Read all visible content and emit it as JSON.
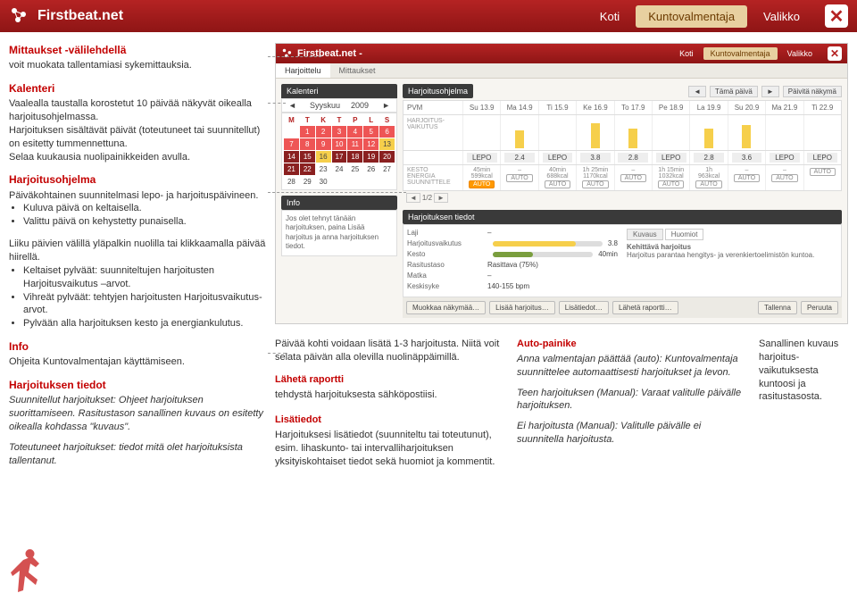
{
  "topbar": {
    "brand": "Firstbeat.net",
    "nav": [
      "Koti",
      "Kuntovalmentaja",
      "Valikko"
    ]
  },
  "left": {
    "a1": {
      "t": "Mittaukset -välilehdellä",
      "b": "voit muokata tallentamiasi sykemittauksia."
    },
    "a2": {
      "t": "Kalenteri",
      "b1": "Vaalealla taustalla korostetut 10 päivää näkyvät oikealla harjoitusohjelmassa.",
      "b2": "Harjoituksen sisältävät päivät (toteutuneet tai suunnitellut) on esitetty tummennettuna.",
      "b3": "Selaa kuukausia nuolipainikkeiden avulla."
    },
    "a3": {
      "t": "Harjoitusohjelma",
      "b": "Päiväkohtainen suunnitelmasi lepo- ja harjoituspäivineen.",
      "li1": "Kuluva päivä on keltaisella.",
      "li2": "Valittu päivä on kehystetty punaisella."
    },
    "a4": {
      "b": "Liiku päivien välillä yläpalkin nuolilla tai klikkaamalla päivää hiirellä.",
      "li1": "Keltaiset pylväät: suunniteltujen harjoitusten Harjoitusvaikutus –arvot.",
      "li2": "Vihreät pylväät: tehtyjen harjoitusten Harjoitusvaikutus-arvot.",
      "li3": "Pylvään alla harjoituksen kesto ja energiankulutus."
    },
    "a5": {
      "t": "Info",
      "b": "Ohjeita Kuntovalmentajan käyttämiseen."
    },
    "a6": {
      "t": "Harjoituksen tiedot",
      "b1": "Suunnitellut harjoitukset: Ohjeet harjoituksen suorittamiseen. Rasitustason sanallinen kuvaus on esitetty oikealla kohdassa \"kuvaus\".",
      "b2": "Toteutuneet harjoitukset: tiedot mitä olet harjoituksista tallentanut."
    }
  },
  "inner": {
    "brand": "Firstbeat.net -",
    "nav": [
      "Koti",
      "Kuntovalmentaja",
      "Valikko"
    ],
    "tabs": [
      "Harjoittelu",
      "Mittaukset"
    ],
    "calendar": {
      "title": "Kalenteri",
      "month": "Syyskuu",
      "year": "2009",
      "dow": [
        "M",
        "T",
        "K",
        "T",
        "P",
        "L",
        "S"
      ],
      "cells": [
        {
          "n": "",
          "c": ""
        },
        {
          "n": "1",
          "c": "red"
        },
        {
          "n": "2",
          "c": "red"
        },
        {
          "n": "3",
          "c": "red"
        },
        {
          "n": "4",
          "c": "red"
        },
        {
          "n": "5",
          "c": "red"
        },
        {
          "n": "6",
          "c": "red"
        },
        {
          "n": "7",
          "c": "red"
        },
        {
          "n": "8",
          "c": "red"
        },
        {
          "n": "9",
          "c": "red"
        },
        {
          "n": "10",
          "c": "red"
        },
        {
          "n": "11",
          "c": "red"
        },
        {
          "n": "12",
          "c": "red"
        },
        {
          "n": "13",
          "c": "yellow"
        },
        {
          "n": "14",
          "c": "dark"
        },
        {
          "n": "15",
          "c": "dark"
        },
        {
          "n": "16",
          "c": "yellow"
        },
        {
          "n": "17",
          "c": "dark"
        },
        {
          "n": "18",
          "c": "dark"
        },
        {
          "n": "19",
          "c": "dark"
        },
        {
          "n": "20",
          "c": "dark"
        },
        {
          "n": "21",
          "c": "dark"
        },
        {
          "n": "22",
          "c": "dark"
        },
        {
          "n": "23",
          "c": ""
        },
        {
          "n": "24",
          "c": ""
        },
        {
          "n": "25",
          "c": ""
        },
        {
          "n": "26",
          "c": ""
        },
        {
          "n": "27",
          "c": ""
        },
        {
          "n": "28",
          "c": ""
        },
        {
          "n": "29",
          "c": ""
        },
        {
          "n": "30",
          "c": ""
        },
        {
          "n": "",
          "c": ""
        },
        {
          "n": "",
          "c": ""
        },
        {
          "n": "",
          "c": ""
        },
        {
          "n": "",
          "c": ""
        }
      ]
    },
    "info": {
      "title": "Info",
      "text": "Jos olet tehnyt tänään harjoituksen, paina Lisää harjoitus ja anna harjoituksen tiedot."
    },
    "sched": {
      "title": "Harjoitusohjelma",
      "today": "Tämä päivä",
      "viewbtn": "Päivitä näkymä",
      "pvm": "PVM",
      "hv": "HARJOITUS-VAIKUTUS",
      "kesto": "KESTO",
      "energia": "ENERGIA",
      "suun": "SUUNNITTELE",
      "days": [
        "Su 13.9",
        "Ma 14.9",
        "Ti 15.9",
        "Ke 16.9",
        "To 17.9",
        "Pe 18.9",
        "La 19.9",
        "Su 20.9",
        "Ma 21.9",
        "Ti 22.9"
      ],
      "bars": [
        {
          "h": 0
        },
        {
          "h": 20,
          "c": "#f6cf4b"
        },
        {
          "h": 0
        },
        {
          "h": 28,
          "c": "#f6cf4b"
        },
        {
          "h": 22,
          "c": "#f6cf4b"
        },
        {
          "h": 0
        },
        {
          "h": 22,
          "c": "#f6cf4b"
        },
        {
          "h": 26,
          "c": "#f6cf4b"
        },
        {
          "h": 0
        },
        {
          "h": 0
        }
      ],
      "lepo": [
        {
          "t": "LEPO"
        },
        {
          "t": "2.4"
        },
        {
          "t": "LEPO"
        },
        {
          "t": "3.8"
        },
        {
          "t": "2.8"
        },
        {
          "t": "LEPO"
        },
        {
          "t": "2.8"
        },
        {
          "t": "3.6"
        },
        {
          "t": "LEPO"
        },
        {
          "t": "LEPO"
        }
      ],
      "meta": [
        {
          "d": "45min",
          "k": "599kcal",
          "a": "AUTO",
          "hot": true
        },
        {
          "d": "–",
          "k": "",
          "a": "AUTO"
        },
        {
          "d": "40min",
          "k": "688kcal",
          "a": "AUTO"
        },
        {
          "d": "1h 25min",
          "k": "1170kcal",
          "a": "AUTO"
        },
        {
          "d": "–",
          "k": "",
          "a": "AUTO"
        },
        {
          "d": "1h 15min",
          "k": "1032kcal",
          "a": "AUTO"
        },
        {
          "d": "1h",
          "k": "963kcal",
          "a": "AUTO"
        },
        {
          "d": "–",
          "k": "",
          "a": "AUTO"
        },
        {
          "d": "–",
          "k": "",
          "a": "AUTO"
        },
        {
          "d": "",
          "k": "",
          "a": "AUTO"
        }
      ],
      "page": "1/2"
    },
    "details": {
      "title": "Harjoituksen tiedot",
      "rows": {
        "laji": "Laji",
        "hv": "Harjoitusvaikutus",
        "hvv": "3.8",
        "kesto": "Kesto",
        "kestov": "40min",
        "ras": "Rasitustaso",
        "rasv": "Rasittava (75%)",
        "matka": "Matka",
        "matkav": "–",
        "syke": "Keskisyke",
        "sykev": "140-155 bpm"
      },
      "tabs": [
        "Kuvaus",
        "Huomiot"
      ],
      "kh": "Kehittävä harjoitus",
      "kt": "Harjoitus parantaa hengitys- ja verenkiertoelimistön kuntoa.",
      "hv_color": "#f6cf4b",
      "hv_fill": 76,
      "kesto_color": "#7a9e3e",
      "kesto_fill": 40
    },
    "buttons": {
      "muokkaa": "Muokkaa näkymää…",
      "lisaa": "Lisää harjoitus…",
      "lisat": "Lisätiedot…",
      "rap": "Lähetä raportti…",
      "tal": "Tallenna",
      "per": "Peruuta"
    }
  },
  "callouts": {
    "c1": {
      "b": "Päivää kohti voidaan lisätä 1-3 harjoitusta. Niitä voit selata päivän alla olevilla nuolinäppäimillä.",
      "t2": "Lähetä raportti",
      "b2": "tehdystä harjoituksesta sähköpostiisi.",
      "t3": "Lisätiedot",
      "b3": "Harjoituksesi lisätiedot (suunniteltu tai toteutunut), esim. lihaskunto- tai intervalliharjoituksen yksityiskohtaiset tiedot sekä huomiot ja kommentit."
    },
    "c2": {
      "t": "Auto-painike",
      "b1": "Anna valmentajan päättää (auto): Kuntovalmentaja suunnittelee automaattisesti harjoitukset ja levon.",
      "b2": "Teen harjoituksen (Manual): Varaat valitulle päivälle harjoituksen.",
      "b3": "Ei harjoitusta (Manual): Valitulle päivälle ei suunnitella harjoitusta."
    },
    "c3": {
      "b": "Sanallinen kuvaus harjoitus-vaikutuksesta kuntoosi ja rasitustasosta."
    }
  }
}
